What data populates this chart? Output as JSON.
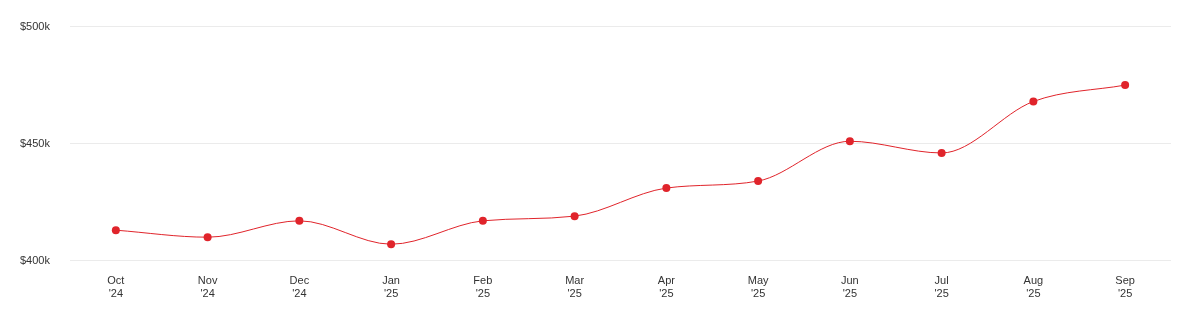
{
  "chart_data": {
    "type": "line",
    "categories": [
      "Oct\n'24",
      "Nov\n'24",
      "Dec\n'24",
      "Jan\n'25",
      "Feb\n'25",
      "Mar\n'25",
      "Apr\n'25",
      "May\n'25",
      "Jun\n'25",
      "Jul\n'25",
      "Aug\n'25",
      "Sep\n'25"
    ],
    "series": [
      {
        "color": "#e0242b",
        "values": [
          413,
          410,
          417,
          407,
          417,
          419,
          431,
          434,
          451,
          446,
          468,
          475
        ]
      }
    ],
    "ylim": [
      400,
      500
    ],
    "yticks": [
      {
        "value": 400,
        "label": "$400k"
      },
      {
        "value": 450,
        "label": "$450k"
      },
      {
        "value": 500,
        "label": "$500k"
      }
    ],
    "grid": "y",
    "legend": false,
    "marker": "circle",
    "line_style": "solid"
  }
}
